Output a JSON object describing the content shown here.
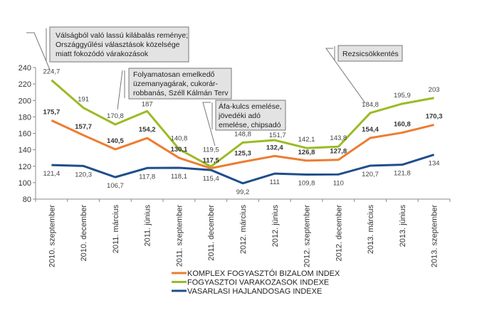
{
  "chart_data": {
    "type": "line",
    "title": "",
    "xlabel": "",
    "ylabel": "",
    "ylim": [
      80,
      240
    ],
    "yticks": [
      80,
      100,
      120,
      140,
      160,
      180,
      200,
      220,
      240
    ],
    "grid": false,
    "legend_position": "bottom",
    "categories": [
      "2010. szeptember",
      "2010. december",
      "2011. március",
      "2011. június",
      "2011. szeptember",
      "2011. december",
      "2012. március",
      "2012. június",
      "2012. szeptember",
      "2012. december",
      "2013. március",
      "2013. június",
      "2013. szeptember"
    ],
    "series": [
      {
        "name": "KOMPLEX FOGYASZTÓI BIZALOM INDEX",
        "color": "#ED7D31",
        "bold_labels": true,
        "values": [
          175.7,
          157.7,
          140.5,
          154.2,
          130.1,
          117.5,
          125.3,
          132.4,
          126.8,
          127.8,
          154.4,
          160.8,
          170.3
        ],
        "labels": [
          "175,7",
          "157,7",
          "140,5",
          "154,2",
          "130,1",
          "117,5",
          "125,3",
          "132,4",
          "126,8",
          "127,8",
          "154,4",
          "160,8",
          "170,3"
        ]
      },
      {
        "name": "FOGYASZTOI VARAKOZASOK INDEXE",
        "color": "#9BBB23",
        "bold_labels": false,
        "values": [
          224.7,
          191,
          170.8,
          187,
          140.8,
          119.5,
          148.8,
          151.7,
          142.1,
          143.8,
          184.8,
          195.9,
          203
        ],
        "labels": [
          "224,7",
          "191",
          "170,8",
          "187",
          "140,8",
          "119,5",
          "148,8",
          "151,7",
          "142,1",
          "143,8",
          "184,8",
          "195,9",
          "203"
        ]
      },
      {
        "name": "VASARLASI HAJLANDOSAG INDEXE",
        "color": "#1F4E8C",
        "bold_labels": false,
        "values": [
          121.4,
          120.3,
          106.7,
          117.8,
          118.1,
          115.4,
          99.2,
          111,
          109.8,
          110,
          120.7,
          121.8,
          134
        ],
        "labels": [
          "121,4",
          "120,3",
          "106,7",
          "117,8",
          "118,1",
          "115,4",
          "99,2",
          "111",
          "109,8",
          "110",
          "120,7",
          "121,8",
          "134"
        ]
      }
    ],
    "annotations": [
      {
        "lines": [
          "Válságból való lassú kilábalás reménye;",
          "Országgyűlési választások közelsége",
          "miatt fokozódó várakozások"
        ]
      },
      {
        "lines": [
          "Folyamatosan emelkedő",
          "üzemanyagárak, cukorár-",
          "robbanás, Széll Kálmán Terv"
        ]
      },
      {
        "lines": [
          "Áfa-kulcs emelése,",
          "jövedéki adó",
          "emelése, chipsadó"
        ]
      },
      {
        "lines": [
          "Rezsicsökkentés"
        ]
      }
    ]
  }
}
